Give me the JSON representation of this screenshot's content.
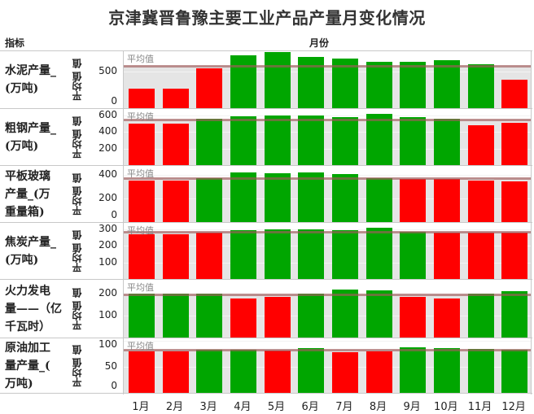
{
  "title": "京津冀晋鲁豫主要工业产品产量月变化情况",
  "header": {
    "indicator": "指标",
    "month": "月份"
  },
  "avg_label": "平均值",
  "y_axis_title": "平均值 值",
  "colors": {
    "below_avg": "#ff0000",
    "above_avg": "#00a600",
    "avg_line": "#a05a5a",
    "shade": "#e5e5e5"
  },
  "chart_data": {
    "type": "bar",
    "title": "京津冀晋鲁豫主要工业产品产量月变化情况",
    "xlabel": "月份",
    "categories": [
      "1月",
      "2月",
      "3月",
      "4月",
      "5月",
      "6月",
      "7月",
      "8月",
      "9月",
      "10月",
      "11月",
      "12月"
    ],
    "series": [
      {
        "name": "水泥产量_(万吨)",
        "ticks": [
          "500",
          "0"
        ],
        "ylim": [
          0,
          760
        ],
        "values": [
          265,
          265,
          545,
          720,
          770,
          690,
          675,
          630,
          630,
          645,
          595,
          385
        ],
        "average": 570
      },
      {
        "name": "粗钢产量_(万吨)",
        "ticks": [
          "600",
          "400",
          "200"
        ],
        "ylim": [
          0,
          670
        ],
        "values": [
          500,
          500,
          560,
          595,
          605,
          605,
          585,
          625,
          580,
          565,
          480,
          515
        ],
        "average": 550
      },
      {
        "name": "平板玻璃产量_(万重量箱)",
        "ticks": [
          "400",
          "200",
          "0"
        ],
        "ylim": [
          0,
          470
        ],
        "values": [
          355,
          355,
          375,
          420,
          415,
          420,
          405,
          370,
          365,
          365,
          355,
          345
        ],
        "average": 370
      },
      {
        "name": "焦炭产量_(万吨)",
        "ticks": [
          "300",
          "200",
          "100"
        ],
        "ylim": [
          0,
          335
        ],
        "values": [
          272,
          272,
          282,
          297,
          302,
          302,
          297,
          312,
          288,
          282,
          282,
          280
        ],
        "average": 288
      },
      {
        "name": "火力发电量——（亿千瓦时）",
        "ticks": [
          "200",
          "100"
        ],
        "ylim": [
          0,
          260
        ],
        "values": [
          200,
          200,
          200,
          180,
          185,
          200,
          220,
          215,
          185,
          180,
          200,
          210
        ],
        "average": 198
      },
      {
        "name": "原油加工量产量_(万吨)",
        "ticks": [
          "100",
          "50",
          "0"
        ],
        "ylim": [
          0,
          103
        ],
        "values": [
          80,
          80,
          82,
          82,
          81,
          86,
          78,
          80,
          87,
          86,
          85,
          82
        ],
        "average": 82
      }
    ],
    "legend": "none",
    "grid": true
  },
  "rows": [
    {
      "label": "水泥产量_\n(万吨)",
      "lines": [
        "水泥产量_",
        "(万吨)"
      ]
    },
    {
      "label": "粗钢产量_\n(万吨)",
      "lines": [
        "粗钢产量_",
        "(万吨)"
      ]
    },
    {
      "label": "平板玻璃产量_(万重量箱)",
      "lines": [
        "平板玻璃",
        "产量_(万",
        "重量箱)"
      ]
    },
    {
      "label": "焦炭产量_(万吨)",
      "lines": [
        "焦炭产量_",
        "(万吨)"
      ]
    },
    {
      "label": "火力发电量——（亿千瓦时）",
      "lines": [
        "火力发电",
        "量——（亿",
        "千瓦时）"
      ]
    },
    {
      "label": "原油加工量产量_(万吨)",
      "lines": [
        "原油加工",
        "量产量_(",
        "万吨)"
      ]
    }
  ]
}
